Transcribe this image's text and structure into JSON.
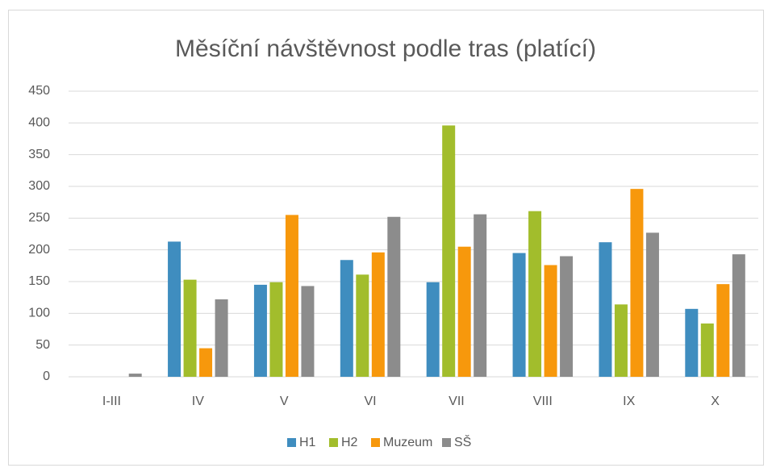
{
  "chart_data": {
    "type": "bar",
    "title": "Měsíční návštěvnost podle tras (platící)",
    "categories": [
      "I-III",
      "IV",
      "V",
      "VI",
      "VII",
      "VIII",
      "IX",
      "X"
    ],
    "series": [
      {
        "name": "H1",
        "color": "#3f8dbf",
        "values": [
          0,
          213,
          145,
          184,
          149,
          195,
          212,
          107
        ]
      },
      {
        "name": "H2",
        "color": "#a2bd2c",
        "values": [
          0,
          153,
          149,
          161,
          396,
          261,
          114,
          84
        ]
      },
      {
        "name": "Muzeum",
        "color": "#f7980c",
        "values": [
          0,
          45,
          255,
          196,
          205,
          176,
          296,
          146
        ]
      },
      {
        "name": "SŠ",
        "color": "#8c8c8c",
        "values": [
          5,
          122,
          143,
          252,
          256,
          190,
          227,
          193
        ]
      }
    ],
    "ylim": [
      0,
      450
    ],
    "yticks": [
      0,
      50,
      100,
      150,
      200,
      250,
      300,
      350,
      400,
      450
    ],
    "grid": true,
    "legend": "bottom"
  }
}
